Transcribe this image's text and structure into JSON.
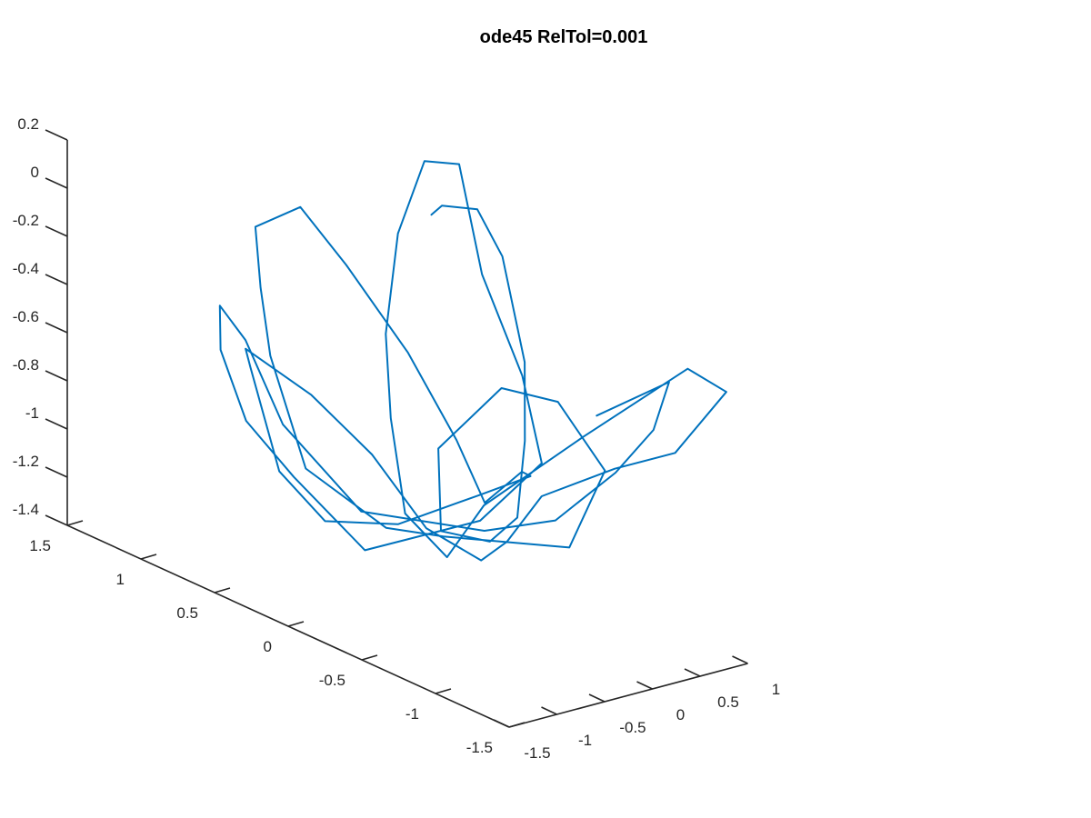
{
  "chart_data": {
    "type": "line",
    "projection": "3d",
    "title": "ode45 RelTol=0.001",
    "grid": false,
    "legend": "none",
    "series_color": "#0072BD",
    "axis_color": "#262626",
    "xlim": [
      -1.5,
      1
    ],
    "ylim": [
      -1.5,
      1.5
    ],
    "zlim": [
      -1.4,
      0.2
    ],
    "x_ticks": [
      -1.5,
      -1,
      -0.5,
      0,
      0.5,
      1
    ],
    "x_tick_labels": [
      "-1.5",
      "-1",
      "-0.5",
      "0",
      "0.5",
      "1"
    ],
    "y_ticks": [
      -1.5,
      -1,
      -0.5,
      0,
      0.5,
      1,
      1.5
    ],
    "y_tick_labels": [
      "-1.5",
      "-1",
      "-0.5",
      "0",
      "0.5",
      "1",
      "1.5"
    ],
    "z_ticks": [
      -1.4,
      -1.2,
      -1,
      -0.8,
      -0.6,
      -0.4,
      -0.2,
      0,
      0.2
    ],
    "z_tick_labels": [
      "-1.4",
      "-1.2",
      "-1",
      "-0.8",
      "-0.6",
      "-0.4",
      "-0.2",
      "0",
      "0.2"
    ],
    "series": [
      {
        "points": [
          [
            0.0,
            0.0,
            0.15
          ],
          [
            0.08,
            -0.02,
            0.185
          ],
          [
            0.25,
            -0.15,
            0.188
          ],
          [
            0.42,
            -0.21,
            -0.009
          ],
          [
            0.53,
            -0.29,
            -0.437
          ],
          [
            0.47,
            -0.33,
            -0.746
          ],
          [
            0.36,
            -0.35,
            -1.048
          ],
          [
            0.18,
            -0.28,
            -1.148
          ],
          [
            0.1,
            -0.0,
            -1.174
          ],
          [
            0.35,
            0.18,
            -0.908
          ],
          [
            0.58,
            -0.1,
            -0.603
          ],
          [
            0.6,
            -0.47,
            -0.559
          ],
          [
            0.63,
            -0.77,
            -0.764
          ],
          [
            0.55,
            -0.58,
            -1.128
          ],
          [
            -0.06,
            -0.12,
            -1.146
          ],
          [
            -0.46,
            0.01,
            -1.104
          ],
          [
            -0.39,
            0.6,
            -1.03
          ],
          [
            -0.33,
            0.88,
            -0.646
          ],
          [
            -0.37,
            0.92,
            -0.37
          ],
          [
            -0.44,
            0.91,
            -0.108
          ],
          [
            -0.17,
            0.78,
            -0.018
          ],
          [
            0.08,
            0.63,
            -0.243
          ],
          [
            0.48,
            0.47,
            -0.605
          ],
          [
            0.88,
            0.4,
            -0.99
          ],
          [
            1.3,
            0.48,
            -1.317
          ],
          [
            1.38,
            0.28,
            -1.141
          ],
          [
            1.1,
            0.04,
            -1.063
          ],
          [
            0.48,
            -0.02,
            -1.058
          ],
          [
            -0.32,
            0.02,
            -1.107
          ],
          [
            -0.99,
            0.08,
            -1.04
          ],
          [
            -1.3,
            0.19,
            -0.831
          ],
          [
            -1.34,
            0.36,
            -0.443
          ],
          [
            -1.53,
            0.27,
            -0.32
          ],
          [
            -1.35,
            -0.06,
            -0.439
          ],
          [
            -1.1,
            -0.31,
            -0.643
          ],
          [
            -0.7,
            -0.42,
            -0.961
          ],
          [
            -0.08,
            -0.39,
            -1.168
          ],
          [
            0.36,
            -0.28,
            -1.167
          ],
          [
            0.97,
            -0.12,
            -1.088
          ],
          [
            1.18,
            -0.48,
            -0.895
          ],
          [
            1.18,
            -0.89,
            -0.715
          ],
          [
            1.3,
            -1.16,
            -0.399
          ],
          [
            1.08,
            -1.04,
            -0.313
          ],
          [
            0.51,
            -0.7,
            -0.631
          ],
          [
            -0.02,
            -0.37,
            -0.951
          ],
          [
            -0.33,
            -0.32,
            -1.148
          ],
          [
            -0.26,
            0.01,
            -1.066
          ],
          [
            -0.04,
            0.25,
            -0.76
          ],
          [
            0.17,
            0.42,
            -0.48
          ],
          [
            0.39,
            0.48,
            -0.103
          ],
          [
            0.39,
            0.3,
            0.248
          ],
          [
            0.26,
            -0.02,
            0.338
          ],
          [
            -0.04,
            -0.37,
            0.01
          ],
          [
            -0.05,
            -0.65,
            -0.332
          ],
          [
            0.03,
            -0.73,
            -0.681
          ],
          [
            -0.23,
            -0.48,
            -0.962
          ],
          [
            -0.82,
            -0.08,
            -1.134
          ],
          [
            -1.01,
            0.28,
            -0.91
          ],
          [
            -1.2,
            0.48,
            -0.713
          ],
          [
            -1.36,
            0.55,
            -0.421
          ],
          [
            -1.46,
            0.49,
            -0.21
          ],
          [
            -1.3,
            0.42,
            -0.35
          ],
          [
            -1.0,
            0.36,
            -0.716
          ],
          [
            -0.58,
            0.1,
            -1.049
          ],
          [
            0.2,
            -0.23,
            -1.119
          ],
          [
            0.62,
            -0.44,
            -1.062
          ],
          [
            0.88,
            -0.68,
            -0.824
          ],
          [
            1.0,
            -0.86,
            -0.609
          ],
          [
            1.07,
            -0.92,
            -0.401
          ],
          [
            0.96,
            -0.5,
            -0.646
          ]
        ]
      }
    ]
  }
}
